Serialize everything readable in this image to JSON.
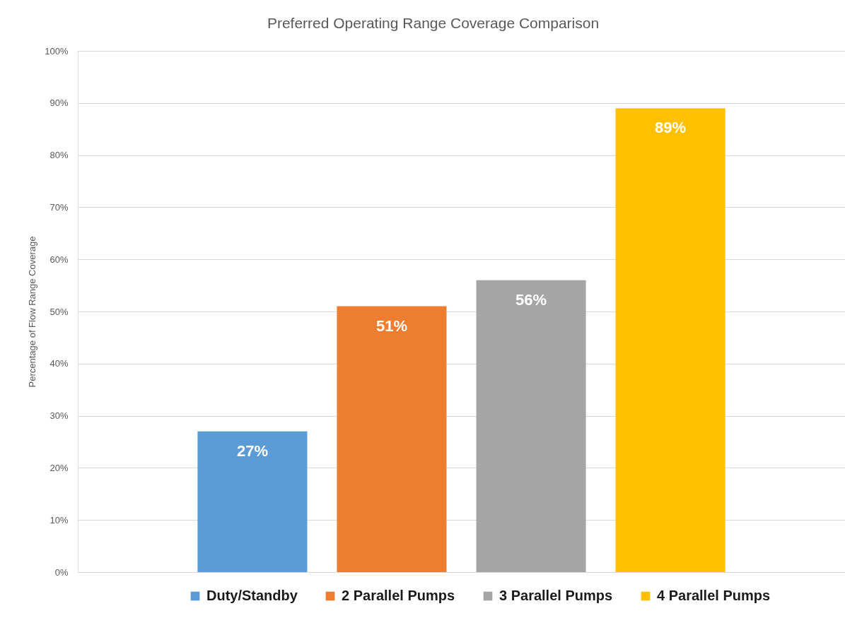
{
  "chart_data": {
    "type": "bar",
    "title": "Preferred Operating Range Coverage Comparison",
    "ylabel": "Percentage of Flow Range Coverage",
    "categories": [
      null
    ],
    "series": [
      {
        "name": "Duty/Standby",
        "color": "#5b9bd5",
        "values": [
          27
        ],
        "value_labels": [
          "27%"
        ]
      },
      {
        "name": "2 Parallel Pumps",
        "color": "#ed7d31",
        "values": [
          51
        ],
        "value_labels": [
          "51%"
        ]
      },
      {
        "name": "3 Parallel Pumps",
        "color": "#a5a5a5",
        "values": [
          56
        ],
        "value_labels": [
          "56%"
        ]
      },
      {
        "name": "4 Parallel Pumps",
        "color": "#ffc000",
        "values": [
          89
        ],
        "value_labels": [
          "89%"
        ]
      }
    ],
    "ylim": [
      0,
      100
    ],
    "yticks": [
      {
        "value": 0,
        "label": "0%"
      },
      {
        "value": 10,
        "label": "10%"
      },
      {
        "value": 20,
        "label": "20%"
      },
      {
        "value": 30,
        "label": "30%"
      },
      {
        "value": 40,
        "label": "40%"
      },
      {
        "value": 50,
        "label": "50%"
      },
      {
        "value": 60,
        "label": "60%"
      },
      {
        "value": 70,
        "label": "70%"
      },
      {
        "value": 80,
        "label": "80%"
      },
      {
        "value": 90,
        "label": "90%"
      },
      {
        "value": 100,
        "label": "100%"
      }
    ],
    "grid": "y",
    "legend": "bottom",
    "tick_labels": "y"
  }
}
